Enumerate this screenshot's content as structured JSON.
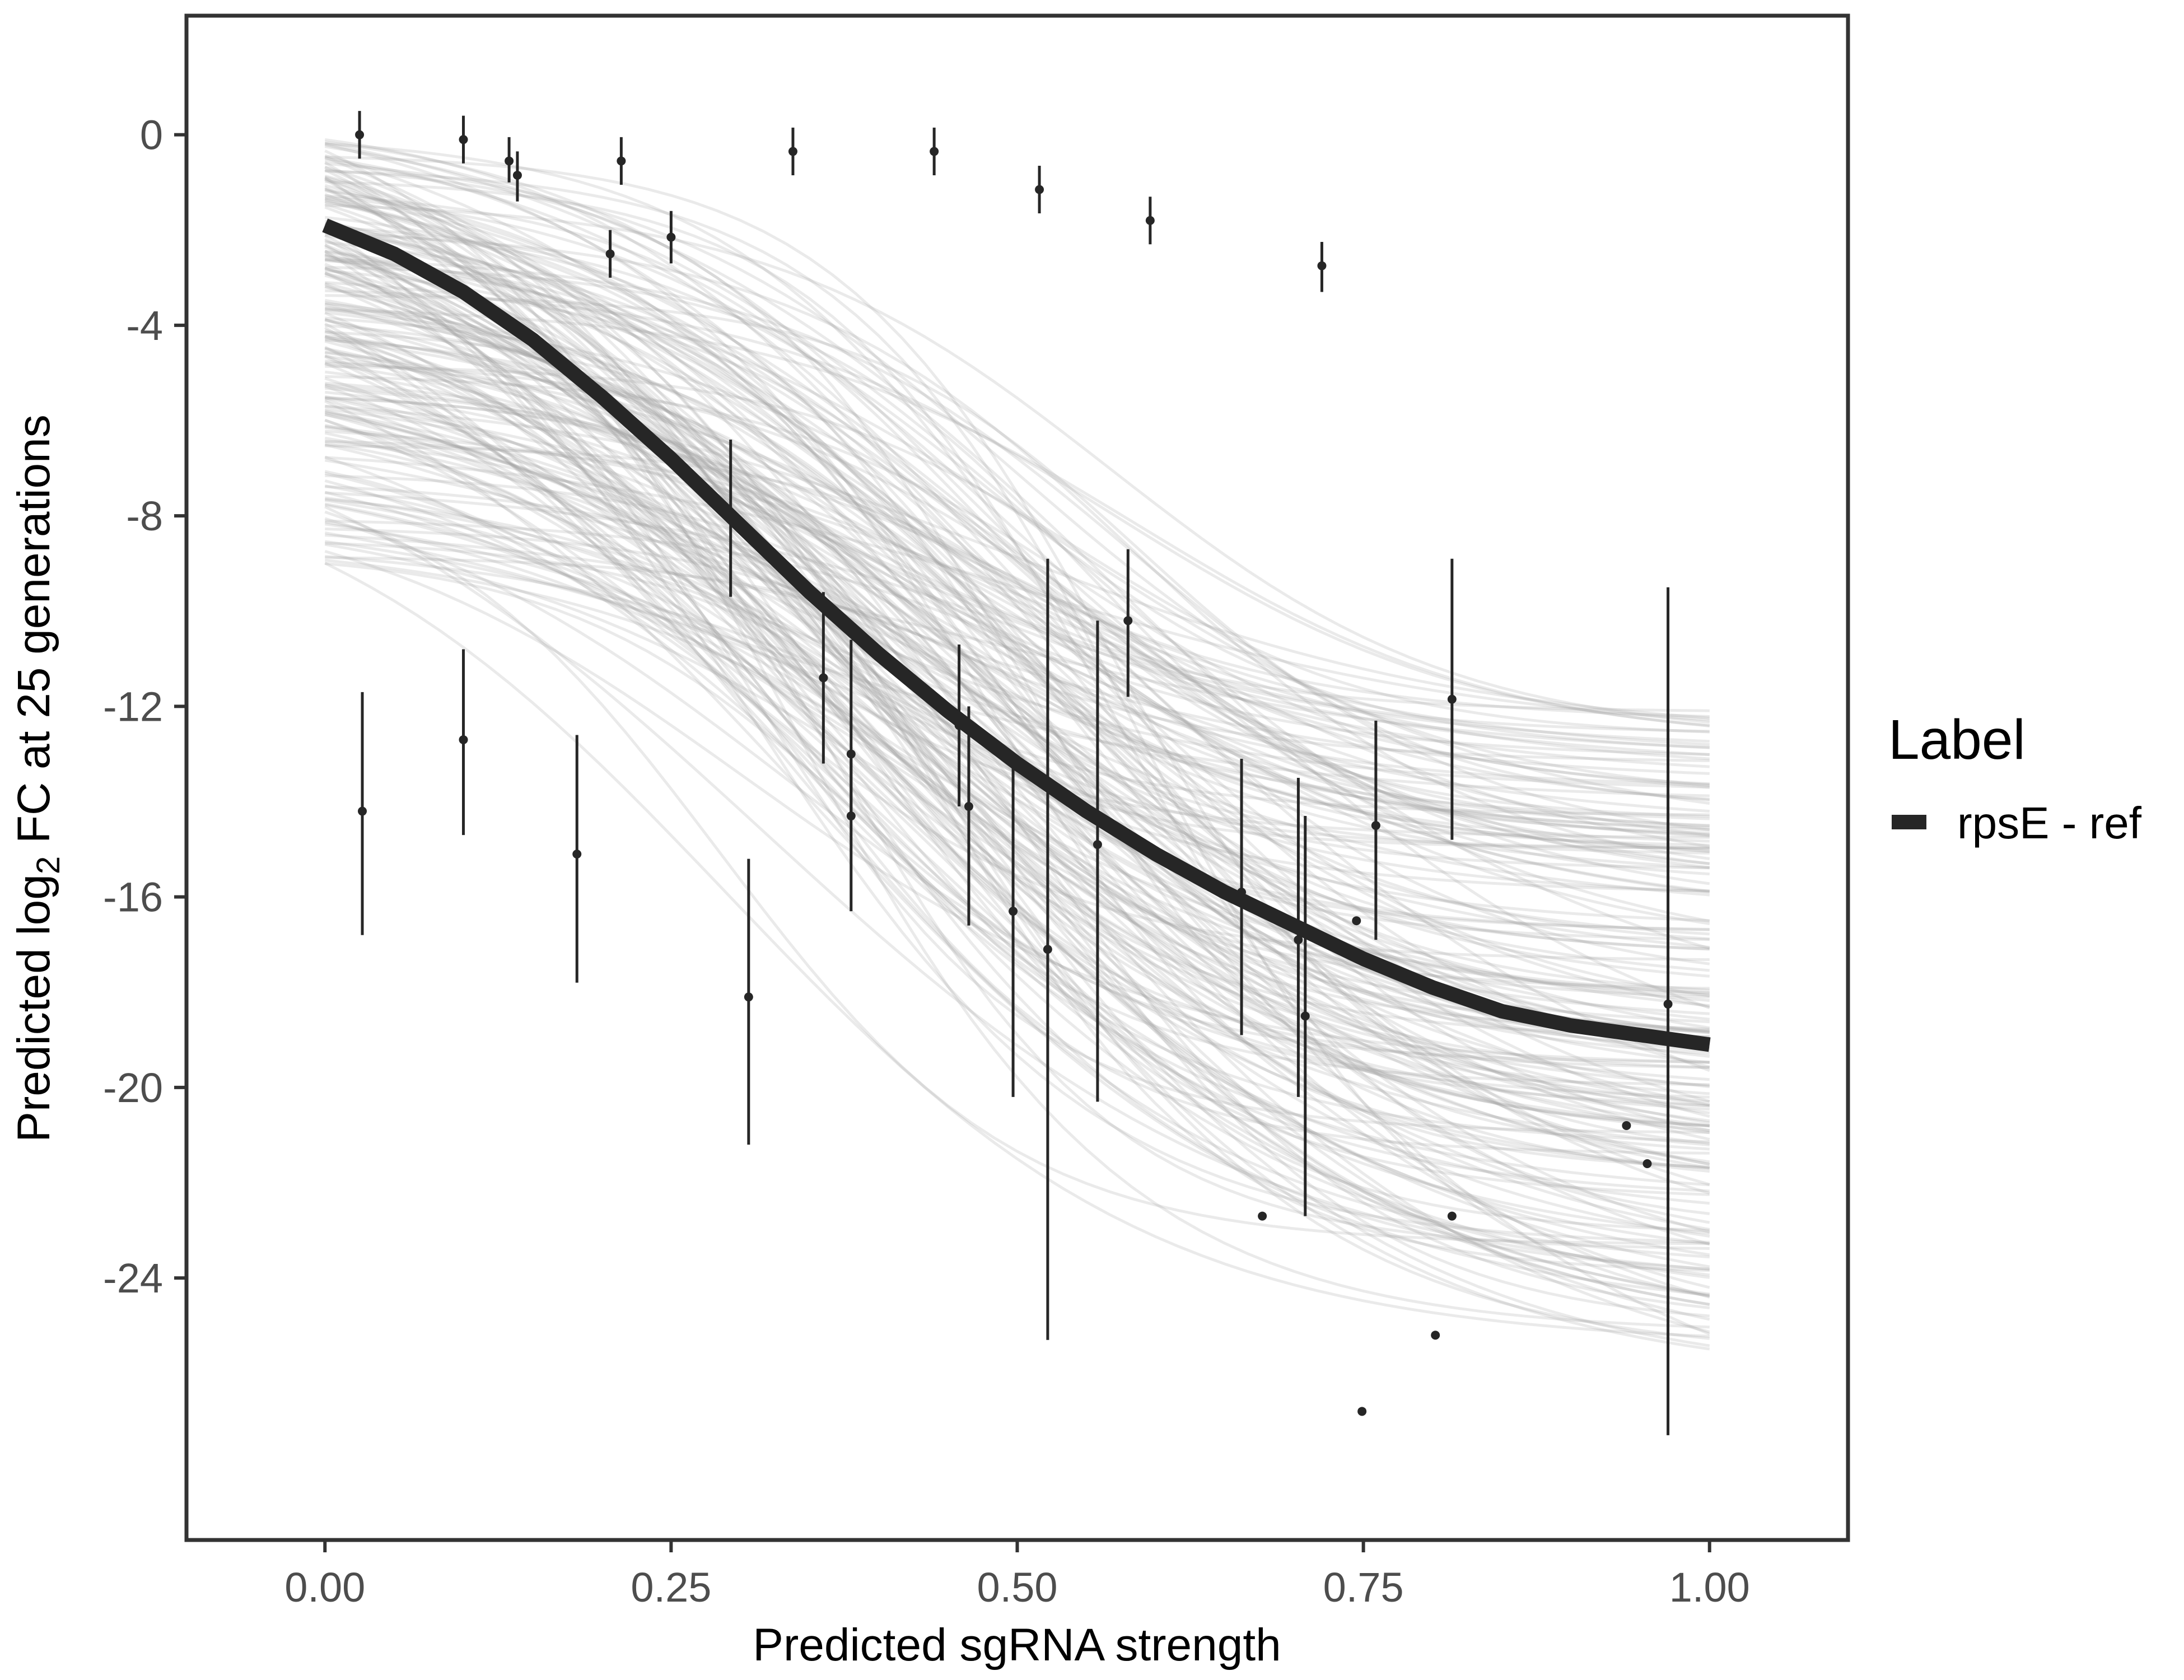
{
  "chart_data": {
    "type": "line",
    "title": "",
    "xlabel": "Predicted sgRNA strength",
    "ylabel": {
      "prefix": "Predicted  log",
      "subscript": "2",
      "suffix": " FC at 25 generations"
    },
    "xlim": [
      -0.1,
      1.1
    ],
    "ylim": [
      -29.5,
      2.5
    ],
    "x_ticks": [
      0.0,
      0.25,
      0.5,
      0.75,
      1.0
    ],
    "x_tick_labels": [
      "0.00",
      "0.25",
      "0.50",
      "0.75",
      "1.00"
    ],
    "y_ticks": [
      0,
      -4,
      -8,
      -12,
      -16,
      -20,
      -24
    ],
    "y_tick_labels": [
      "0",
      "-4",
      "-8",
      "-12",
      "-16",
      "-20",
      "-24"
    ],
    "grid": false,
    "legend": {
      "title": "Label",
      "placement": "right",
      "entries": [
        {
          "label": "rpsE - ref",
          "color": "#262626"
        }
      ]
    },
    "fit_curve": {
      "name": "rpsE - ref",
      "color": "#262626",
      "x": [
        0.0,
        0.05,
        0.1,
        0.15,
        0.2,
        0.25,
        0.3,
        0.35,
        0.4,
        0.45,
        0.5,
        0.55,
        0.6,
        0.65,
        0.7,
        0.75,
        0.8,
        0.85,
        0.9,
        0.95,
        1.0
      ],
      "y": [
        -1.9,
        -2.5,
        -3.3,
        -4.3,
        -5.5,
        -6.8,
        -8.2,
        -9.6,
        -10.9,
        -12.1,
        -13.2,
        -14.2,
        -15.1,
        -15.9,
        -16.6,
        -17.3,
        -17.9,
        -18.4,
        -18.7,
        -18.9,
        -19.1
      ]
    },
    "posterior_band": {
      "color": "#9e9e9e",
      "draws": 200,
      "start_y_range": [
        -9.0,
        -0.1
      ],
      "end_y_range": [
        -25.5,
        -12.0
      ]
    },
    "points": [
      {
        "x": 0.025,
        "y": 0.0,
        "ylo": -0.5,
        "yhi": 0.5
      },
      {
        "x": 0.027,
        "y": -14.2,
        "ylo": -16.8,
        "yhi": -11.7
      },
      {
        "x": 0.1,
        "y": -0.1,
        "ylo": -0.6,
        "yhi": 0.4
      },
      {
        "x": 0.1,
        "y": -12.7,
        "ylo": -14.7,
        "yhi": -10.8
      },
      {
        "x": 0.133,
        "y": -0.55,
        "ylo": -1.0,
        "yhi": -0.05
      },
      {
        "x": 0.139,
        "y": -0.85,
        "ylo": -1.4,
        "yhi": -0.35
      },
      {
        "x": 0.182,
        "y": -15.1,
        "ylo": -17.8,
        "yhi": -12.6
      },
      {
        "x": 0.206,
        "y": -2.5,
        "ylo": -3.0,
        "yhi": -2.0
      },
      {
        "x": 0.214,
        "y": -0.55,
        "ylo": -1.05,
        "yhi": -0.05
      },
      {
        "x": 0.25,
        "y": -2.15,
        "ylo": -2.7,
        "yhi": -1.6
      },
      {
        "x": 0.293,
        "y": -8.0,
        "ylo": -9.7,
        "yhi": -6.4
      },
      {
        "x": 0.306,
        "y": -18.1,
        "ylo": -21.2,
        "yhi": -15.2
      },
      {
        "x": 0.338,
        "y": -0.35,
        "ylo": -0.85,
        "yhi": 0.15
      },
      {
        "x": 0.36,
        "y": -11.4,
        "ylo": -13.2,
        "yhi": -9.6
      },
      {
        "x": 0.38,
        "y": -13.0,
        "ylo": -14.3,
        "yhi": -10.6
      },
      {
        "x": 0.38,
        "y": -14.3,
        "ylo": -16.3,
        "yhi": -13.0
      },
      {
        "x": 0.44,
        "y": -0.35,
        "ylo": -0.85,
        "yhi": 0.15
      },
      {
        "x": 0.458,
        "y": -12.4,
        "ylo": -14.1,
        "yhi": -10.7
      },
      {
        "x": 0.465,
        "y": -14.1,
        "ylo": -16.6,
        "yhi": -12.0
      },
      {
        "x": 0.497,
        "y": -16.3,
        "ylo": -20.2,
        "yhi": -13.0
      },
      {
        "x": 0.516,
        "y": -1.15,
        "ylo": -1.65,
        "yhi": -0.65
      },
      {
        "x": 0.522,
        "y": -17.1,
        "ylo": -25.3,
        "yhi": -8.9
      },
      {
        "x": 0.558,
        "y": -14.9,
        "ylo": -20.3,
        "yhi": -10.2
      },
      {
        "x": 0.58,
        "y": -10.2,
        "ylo": -11.8,
        "yhi": -8.7
      },
      {
        "x": 0.596,
        "y": -1.8,
        "ylo": -2.3,
        "yhi": -1.3
      },
      {
        "x": 0.662,
        "y": -15.9,
        "ylo": -18.9,
        "yhi": -13.1
      },
      {
        "x": 0.677,
        "y": -22.7,
        "ylo": -22.7,
        "yhi": -22.7
      },
      {
        "x": 0.703,
        "y": -16.9,
        "ylo": -20.2,
        "yhi": -13.5
      },
      {
        "x": 0.708,
        "y": -18.5,
        "ylo": -22.7,
        "yhi": -14.3
      },
      {
        "x": 0.72,
        "y": -2.75,
        "ylo": -3.3,
        "yhi": -2.25
      },
      {
        "x": 0.745,
        "y": -16.5,
        "ylo": -16.5,
        "yhi": -16.5
      },
      {
        "x": 0.749,
        "y": -26.8,
        "ylo": -26.8,
        "yhi": -26.8
      },
      {
        "x": 0.759,
        "y": -14.5,
        "ylo": -16.9,
        "yhi": -12.3
      },
      {
        "x": 0.802,
        "y": -25.2,
        "ylo": -25.2,
        "yhi": -25.2
      },
      {
        "x": 0.814,
        "y": -11.85,
        "ylo": -14.8,
        "yhi": -8.9
      },
      {
        "x": 0.814,
        "y": -22.7,
        "ylo": -22.7,
        "yhi": -22.7
      },
      {
        "x": 0.94,
        "y": -20.8,
        "ylo": -20.8,
        "yhi": -20.8
      },
      {
        "x": 0.955,
        "y": -21.6,
        "ylo": -21.6,
        "yhi": -21.6
      },
      {
        "x": 0.97,
        "y": -18.25,
        "ylo": -27.3,
        "yhi": -9.5
      }
    ]
  }
}
